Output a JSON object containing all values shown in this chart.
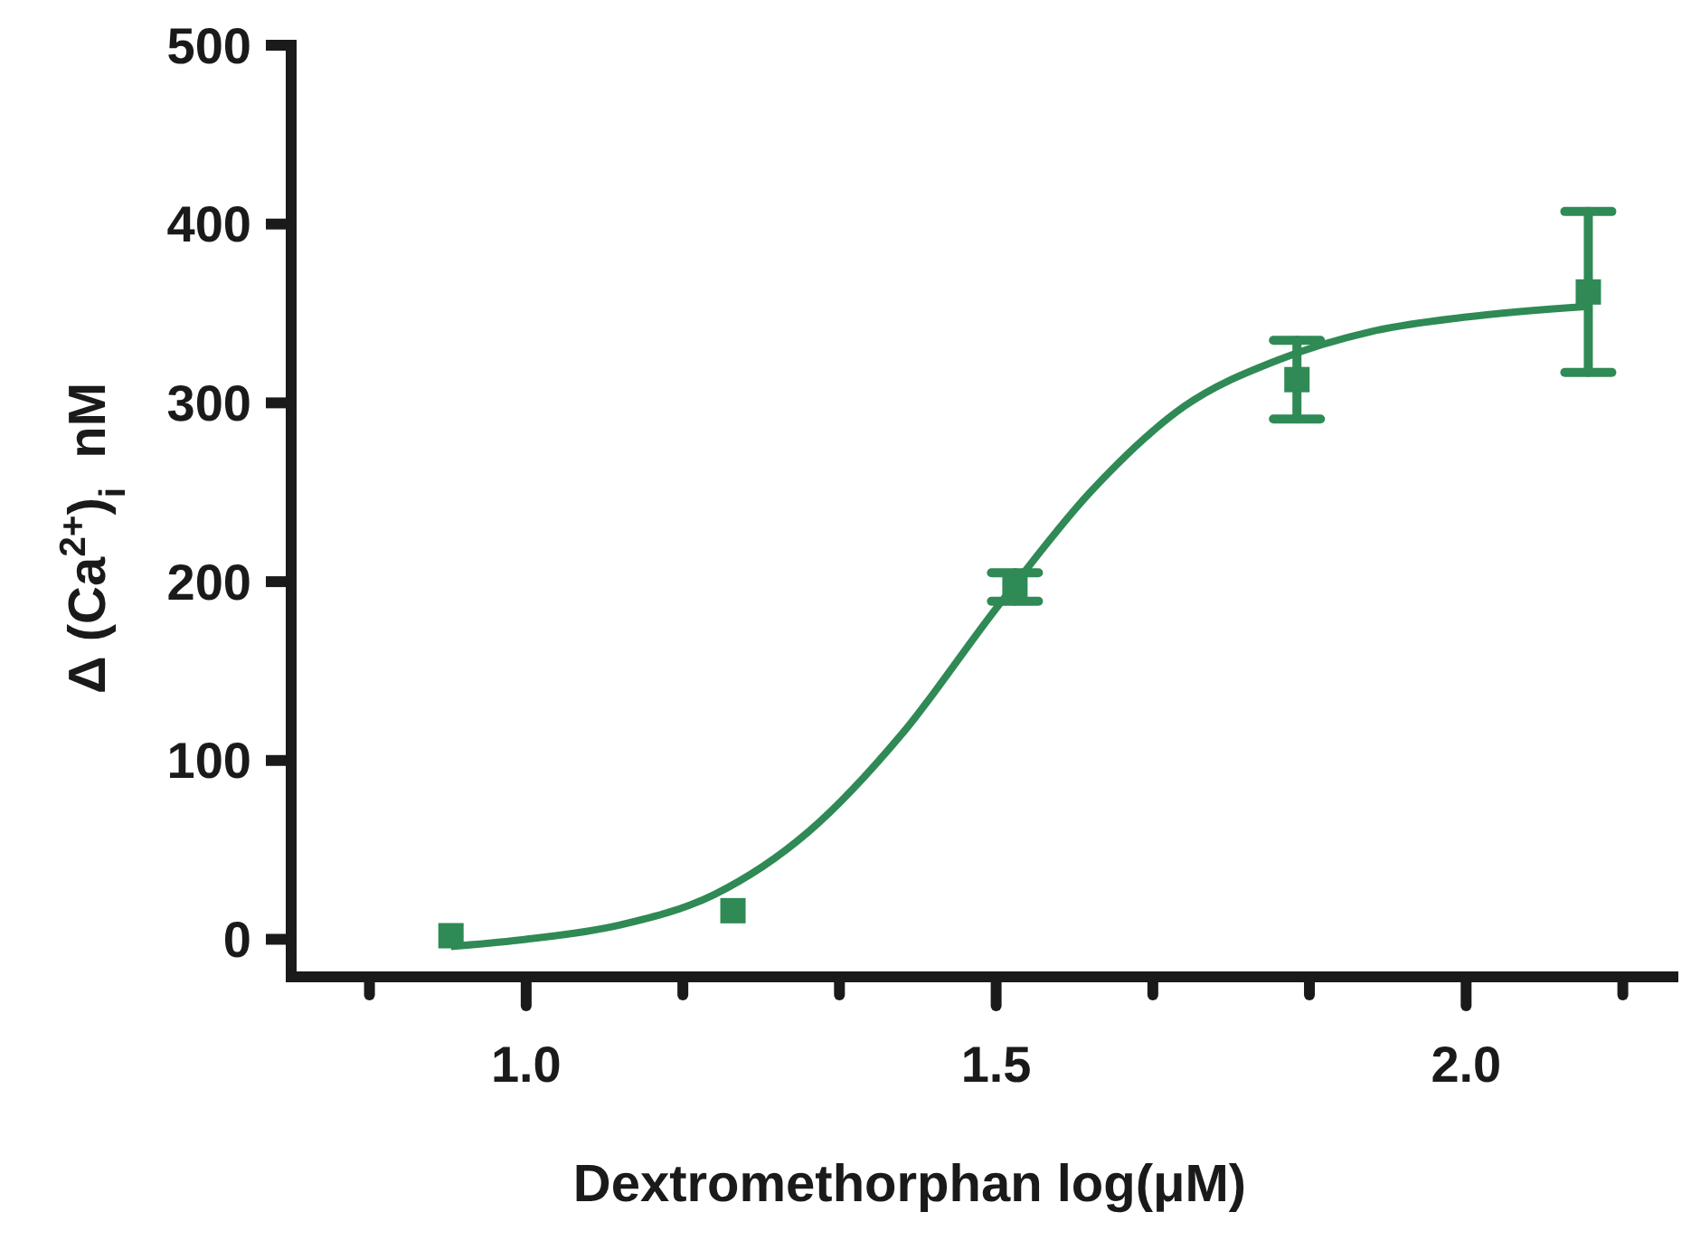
{
  "chart_data": {
    "type": "scatter",
    "xlabel": "Dextromethorphan log(μM)",
    "ylabel": "Δ (Ca$^{2+}$)$_{i}$  nM",
    "xlim": [
      0.75,
      2.22
    ],
    "ylim": [
      -21,
      500
    ],
    "xticks": [
      {
        "value": 0.8333,
        "label": null
      },
      {
        "value": 1,
        "label": "1.0"
      },
      {
        "value": 1.1667,
        "label": null
      },
      {
        "value": 1.3333,
        "label": null
      },
      {
        "value": 1.5,
        "label": "1.5"
      },
      {
        "value": 1.6667,
        "label": null
      },
      {
        "value": 1.8333,
        "label": null
      },
      {
        "value": 2,
        "label": "2.0"
      },
      {
        "value": 2.1667,
        "label": null
      }
    ],
    "yticks": [
      0,
      100,
      200,
      300,
      400,
      500
    ],
    "grid": false,
    "marker": "square",
    "series": [
      {
        "color": "#2f8a55",
        "x": [
          0.92,
          1.22,
          1.52,
          1.82,
          2.13
        ],
        "values": [
          2,
          16,
          197,
          313,
          362
        ],
        "errors": [
          null,
          null,
          8,
          22,
          45
        ]
      },
      {
        "type": "line",
        "color": "#2f8a55",
        "marker": "none",
        "line_style": "solid",
        "x": [
          0.92,
          1.0,
          1.1,
          1.2,
          1.3,
          1.4,
          1.5,
          1.6,
          1.7,
          1.8,
          1.9,
          2.0,
          2.13
        ],
        "values": [
          -4,
          0,
          8,
          25,
          60,
          115,
          185,
          250,
          298,
          324,
          340,
          348,
          354
        ]
      }
    ]
  }
}
